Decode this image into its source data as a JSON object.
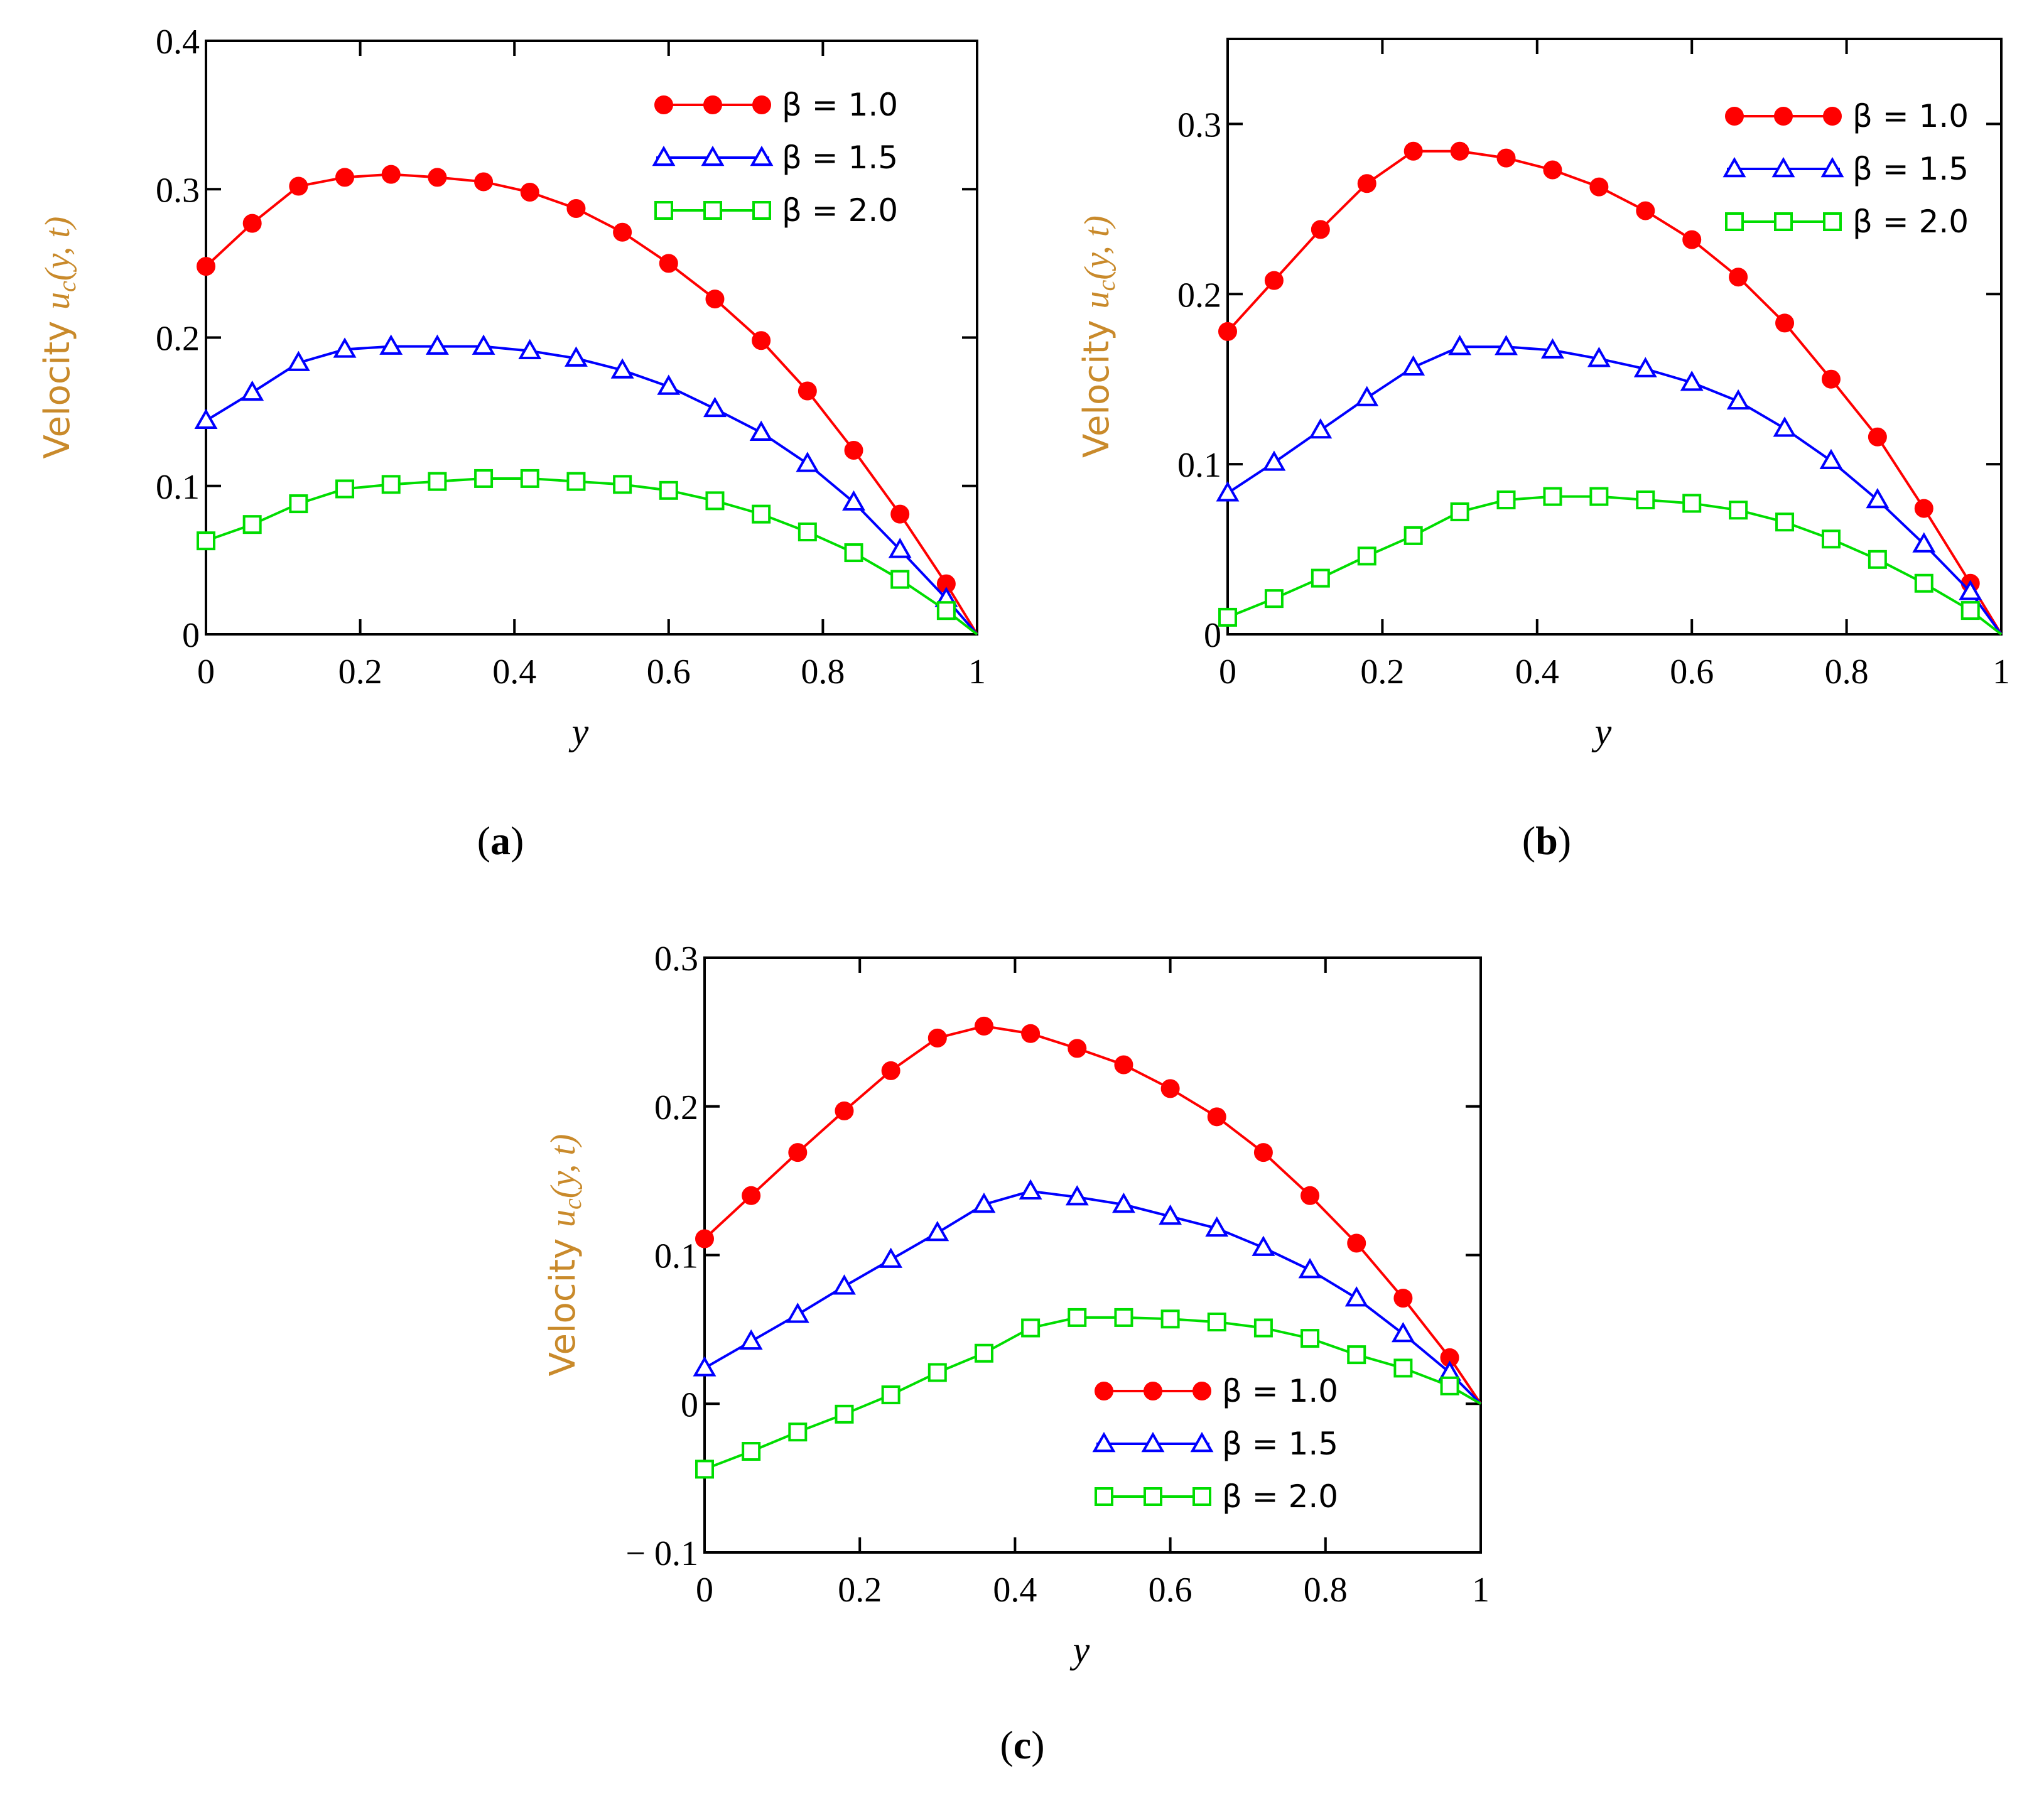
{
  "colors": {
    "red": "#ff0000",
    "blue": "#0000ff",
    "green": "#00dd00",
    "label": "#c98a2b",
    "axis": "#000000"
  },
  "chart_data": [
    {
      "type": "line",
      "caption": "a",
      "xlabel": "y",
      "ylabel": "Velocity u_c(y, t)",
      "ylabel_parts": {
        "prefix": "Velocity ",
        "symbol": "u",
        "sub": "c",
        "args": "(y, t)"
      },
      "xlim": [
        0,
        1
      ],
      "ylim": [
        0,
        0.4
      ],
      "xticks": [
        "0",
        "0.2",
        "0.4",
        "0.6",
        "0.8",
        "1"
      ],
      "yticks": [
        "0",
        "0.1",
        "0.2",
        "0.3",
        "0.4"
      ],
      "legend_position": "top-right",
      "x": [
        0,
        0.06,
        0.12,
        0.18,
        0.24,
        0.3,
        0.36,
        0.42,
        0.48,
        0.54,
        0.6,
        0.66,
        0.72,
        0.78,
        0.84,
        0.9,
        0.96,
        1.0
      ],
      "series": [
        {
          "name": "β = 1.0",
          "marker": "circle",
          "values": [
            0.248,
            0.277,
            0.302,
            0.308,
            0.31,
            0.308,
            0.305,
            0.298,
            0.287,
            0.271,
            0.25,
            0.226,
            0.198,
            0.164,
            0.124,
            0.081,
            0.034,
            0.0
          ]
        },
        {
          "name": "β = 1.5",
          "marker": "triangle",
          "values": [
            0.144,
            0.163,
            0.183,
            0.192,
            0.194,
            0.194,
            0.194,
            0.191,
            0.186,
            0.178,
            0.167,
            0.152,
            0.136,
            0.115,
            0.089,
            0.057,
            0.024,
            0.0
          ]
        },
        {
          "name": "β = 2.0",
          "marker": "square",
          "values": [
            0.063,
            0.074,
            0.088,
            0.098,
            0.101,
            0.103,
            0.105,
            0.105,
            0.103,
            0.101,
            0.097,
            0.09,
            0.081,
            0.069,
            0.055,
            0.037,
            0.016,
            0.0
          ]
        }
      ]
    },
    {
      "type": "line",
      "caption": "b",
      "xlabel": "y",
      "ylabel": "Velocity u_c(y, t)",
      "ylabel_parts": {
        "prefix": "Velocity ",
        "symbol": "u",
        "sub": "c",
        "args": "(y, t)"
      },
      "xlim": [
        0,
        1
      ],
      "ylim": [
        0,
        0.35
      ],
      "xticks": [
        "0",
        "0.2",
        "0.4",
        "0.6",
        "0.8",
        "1"
      ],
      "yticks": [
        "0",
        "0.1",
        "0.2",
        "0.3"
      ],
      "legend_position": "top-right",
      "x": [
        0,
        0.06,
        0.12,
        0.18,
        0.24,
        0.3,
        0.36,
        0.42,
        0.48,
        0.54,
        0.6,
        0.66,
        0.72,
        0.78,
        0.84,
        0.9,
        0.96,
        1.0
      ],
      "series": [
        {
          "name": "β = 1.0",
          "marker": "circle",
          "values": [
            0.178,
            0.208,
            0.238,
            0.265,
            0.284,
            0.284,
            0.28,
            0.273,
            0.263,
            0.249,
            0.232,
            0.21,
            0.183,
            0.15,
            0.116,
            0.074,
            0.03,
            0.0
          ]
        },
        {
          "name": "β = 1.5",
          "marker": "triangle",
          "values": [
            0.083,
            0.101,
            0.12,
            0.139,
            0.157,
            0.169,
            0.169,
            0.167,
            0.162,
            0.156,
            0.148,
            0.137,
            0.121,
            0.102,
            0.079,
            0.053,
            0.025,
            0.0
          ]
        },
        {
          "name": "β = 2.0",
          "marker": "square",
          "values": [
            0.01,
            0.021,
            0.033,
            0.046,
            0.058,
            0.072,
            0.079,
            0.081,
            0.081,
            0.079,
            0.077,
            0.073,
            0.066,
            0.056,
            0.044,
            0.03,
            0.014,
            0.0
          ]
        }
      ]
    },
    {
      "type": "line",
      "caption": "c",
      "xlabel": "y",
      "ylabel": "Velocity u_c(y, t)",
      "ylabel_parts": {
        "prefix": "Velocity ",
        "symbol": "u",
        "sub": "c",
        "args": "(y, t)"
      },
      "xlim": [
        0,
        1
      ],
      "ylim": [
        -0.1,
        0.3
      ],
      "xticks": [
        "0",
        "0.2",
        "0.4",
        "0.6",
        "0.8",
        "1"
      ],
      "yticks": [
        "− 0.1",
        "0",
        "0.1",
        "0.2",
        "0.3"
      ],
      "legend_position": "bottom-right",
      "x": [
        0,
        0.06,
        0.12,
        0.18,
        0.24,
        0.3,
        0.36,
        0.42,
        0.48,
        0.54,
        0.6,
        0.66,
        0.72,
        0.78,
        0.84,
        0.9,
        0.96,
        1.0
      ],
      "series": [
        {
          "name": "β = 1.0",
          "marker": "circle",
          "values": [
            0.111,
            0.14,
            0.169,
            0.197,
            0.224,
            0.246,
            0.254,
            0.249,
            0.239,
            0.228,
            0.212,
            0.193,
            0.169,
            0.14,
            0.108,
            0.071,
            0.031,
            0.0
          ]
        },
        {
          "name": "β = 1.5",
          "marker": "triangle",
          "values": [
            0.024,
            0.042,
            0.06,
            0.079,
            0.097,
            0.115,
            0.134,
            0.143,
            0.139,
            0.134,
            0.126,
            0.118,
            0.105,
            0.09,
            0.071,
            0.047,
            0.021,
            0.0
          ]
        },
        {
          "name": "β = 2.0",
          "marker": "square",
          "values": [
            -0.044,
            -0.032,
            -0.019,
            -0.007,
            0.006,
            0.021,
            0.034,
            0.051,
            0.058,
            0.058,
            0.057,
            0.055,
            0.051,
            0.044,
            0.033,
            0.024,
            0.012,
            0.0
          ]
        }
      ]
    }
  ]
}
